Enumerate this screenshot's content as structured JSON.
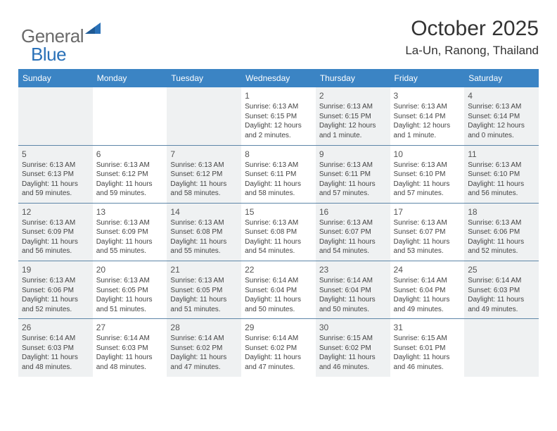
{
  "logo": {
    "text_general": "General",
    "text_blue": "Blue",
    "triangle_color": "#2a71b8"
  },
  "header": {
    "title": "October 2025",
    "location": "La-Un, Ranong, Thailand"
  },
  "style": {
    "header_bg": "#3b84c4",
    "header_text": "#ffffff",
    "row_border": "#5e86a8",
    "cell_odd_bg": "#eff1f2",
    "cell_even_bg": "#ffffff",
    "body_text": "#444444",
    "title_fontsize": 30,
    "location_fontsize": 17,
    "day_header_fontsize": 12,
    "daynum_fontsize": 12,
    "detail_fontsize": 10
  },
  "day_headers": [
    "Sunday",
    "Monday",
    "Tuesday",
    "Wednesday",
    "Thursday",
    "Friday",
    "Saturday"
  ],
  "weeks": [
    [
      null,
      null,
      null,
      {
        "num": "1",
        "sunrise": "Sunrise: 6:13 AM",
        "sunset": "Sunset: 6:15 PM",
        "daylight": "Daylight: 12 hours and 2 minutes."
      },
      {
        "num": "2",
        "sunrise": "Sunrise: 6:13 AM",
        "sunset": "Sunset: 6:15 PM",
        "daylight": "Daylight: 12 hours and 1 minute."
      },
      {
        "num": "3",
        "sunrise": "Sunrise: 6:13 AM",
        "sunset": "Sunset: 6:14 PM",
        "daylight": "Daylight: 12 hours and 1 minute."
      },
      {
        "num": "4",
        "sunrise": "Sunrise: 6:13 AM",
        "sunset": "Sunset: 6:14 PM",
        "daylight": "Daylight: 12 hours and 0 minutes."
      }
    ],
    [
      {
        "num": "5",
        "sunrise": "Sunrise: 6:13 AM",
        "sunset": "Sunset: 6:13 PM",
        "daylight": "Daylight: 11 hours and 59 minutes."
      },
      {
        "num": "6",
        "sunrise": "Sunrise: 6:13 AM",
        "sunset": "Sunset: 6:12 PM",
        "daylight": "Daylight: 11 hours and 59 minutes."
      },
      {
        "num": "7",
        "sunrise": "Sunrise: 6:13 AM",
        "sunset": "Sunset: 6:12 PM",
        "daylight": "Daylight: 11 hours and 58 minutes."
      },
      {
        "num": "8",
        "sunrise": "Sunrise: 6:13 AM",
        "sunset": "Sunset: 6:11 PM",
        "daylight": "Daylight: 11 hours and 58 minutes."
      },
      {
        "num": "9",
        "sunrise": "Sunrise: 6:13 AM",
        "sunset": "Sunset: 6:11 PM",
        "daylight": "Daylight: 11 hours and 57 minutes."
      },
      {
        "num": "10",
        "sunrise": "Sunrise: 6:13 AM",
        "sunset": "Sunset: 6:10 PM",
        "daylight": "Daylight: 11 hours and 57 minutes."
      },
      {
        "num": "11",
        "sunrise": "Sunrise: 6:13 AM",
        "sunset": "Sunset: 6:10 PM",
        "daylight": "Daylight: 11 hours and 56 minutes."
      }
    ],
    [
      {
        "num": "12",
        "sunrise": "Sunrise: 6:13 AM",
        "sunset": "Sunset: 6:09 PM",
        "daylight": "Daylight: 11 hours and 56 minutes."
      },
      {
        "num": "13",
        "sunrise": "Sunrise: 6:13 AM",
        "sunset": "Sunset: 6:09 PM",
        "daylight": "Daylight: 11 hours and 55 minutes."
      },
      {
        "num": "14",
        "sunrise": "Sunrise: 6:13 AM",
        "sunset": "Sunset: 6:08 PM",
        "daylight": "Daylight: 11 hours and 55 minutes."
      },
      {
        "num": "15",
        "sunrise": "Sunrise: 6:13 AM",
        "sunset": "Sunset: 6:08 PM",
        "daylight": "Daylight: 11 hours and 54 minutes."
      },
      {
        "num": "16",
        "sunrise": "Sunrise: 6:13 AM",
        "sunset": "Sunset: 6:07 PM",
        "daylight": "Daylight: 11 hours and 54 minutes."
      },
      {
        "num": "17",
        "sunrise": "Sunrise: 6:13 AM",
        "sunset": "Sunset: 6:07 PM",
        "daylight": "Daylight: 11 hours and 53 minutes."
      },
      {
        "num": "18",
        "sunrise": "Sunrise: 6:13 AM",
        "sunset": "Sunset: 6:06 PM",
        "daylight": "Daylight: 11 hours and 52 minutes."
      }
    ],
    [
      {
        "num": "19",
        "sunrise": "Sunrise: 6:13 AM",
        "sunset": "Sunset: 6:06 PM",
        "daylight": "Daylight: 11 hours and 52 minutes."
      },
      {
        "num": "20",
        "sunrise": "Sunrise: 6:13 AM",
        "sunset": "Sunset: 6:05 PM",
        "daylight": "Daylight: 11 hours and 51 minutes."
      },
      {
        "num": "21",
        "sunrise": "Sunrise: 6:13 AM",
        "sunset": "Sunset: 6:05 PM",
        "daylight": "Daylight: 11 hours and 51 minutes."
      },
      {
        "num": "22",
        "sunrise": "Sunrise: 6:14 AM",
        "sunset": "Sunset: 6:04 PM",
        "daylight": "Daylight: 11 hours and 50 minutes."
      },
      {
        "num": "23",
        "sunrise": "Sunrise: 6:14 AM",
        "sunset": "Sunset: 6:04 PM",
        "daylight": "Daylight: 11 hours and 50 minutes."
      },
      {
        "num": "24",
        "sunrise": "Sunrise: 6:14 AM",
        "sunset": "Sunset: 6:04 PM",
        "daylight": "Daylight: 11 hours and 49 minutes."
      },
      {
        "num": "25",
        "sunrise": "Sunrise: 6:14 AM",
        "sunset": "Sunset: 6:03 PM",
        "daylight": "Daylight: 11 hours and 49 minutes."
      }
    ],
    [
      {
        "num": "26",
        "sunrise": "Sunrise: 6:14 AM",
        "sunset": "Sunset: 6:03 PM",
        "daylight": "Daylight: 11 hours and 48 minutes."
      },
      {
        "num": "27",
        "sunrise": "Sunrise: 6:14 AM",
        "sunset": "Sunset: 6:03 PM",
        "daylight": "Daylight: 11 hours and 48 minutes."
      },
      {
        "num": "28",
        "sunrise": "Sunrise: 6:14 AM",
        "sunset": "Sunset: 6:02 PM",
        "daylight": "Daylight: 11 hours and 47 minutes."
      },
      {
        "num": "29",
        "sunrise": "Sunrise: 6:14 AM",
        "sunset": "Sunset: 6:02 PM",
        "daylight": "Daylight: 11 hours and 47 minutes."
      },
      {
        "num": "30",
        "sunrise": "Sunrise: 6:15 AM",
        "sunset": "Sunset: 6:02 PM",
        "daylight": "Daylight: 11 hours and 46 minutes."
      },
      {
        "num": "31",
        "sunrise": "Sunrise: 6:15 AM",
        "sunset": "Sunset: 6:01 PM",
        "daylight": "Daylight: 11 hours and 46 minutes."
      },
      null
    ]
  ]
}
